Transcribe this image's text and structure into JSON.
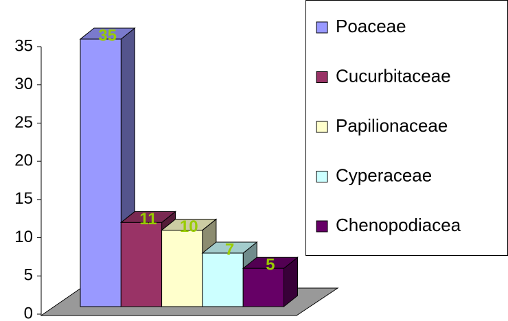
{
  "chart_data": {
    "type": "bar3d",
    "categories": [
      "Poaceae",
      "Cucurbitaceae",
      "Papilionaceae",
      "Cyperaceae",
      "Chenopodiacea"
    ],
    "values": [
      35,
      11,
      10,
      7,
      5
    ],
    "colors": [
      "#9999ff",
      "#993366",
      "#ffffcc",
      "#ccffff",
      "#660066"
    ],
    "ylim": [
      0,
      35
    ],
    "yticks": [
      0,
      5,
      10,
      15,
      20,
      25,
      30,
      35
    ],
    "legend": "right",
    "data_labels": true
  }
}
